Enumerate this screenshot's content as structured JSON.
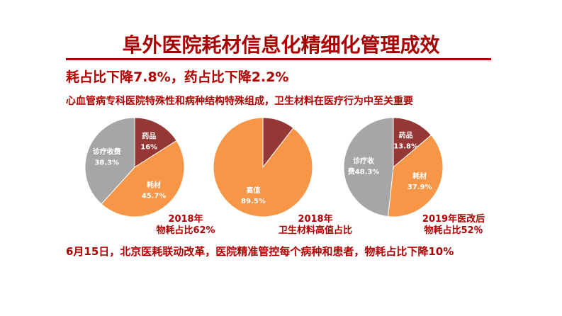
{
  "title": "阜外医院耗材信息化精细化管理成效",
  "subtitle": "耗占比下降7.8%，药占比下降2.2%",
  "description": "心血管病专科医院特殊性和病种结构特殊组成，卫生材料在医疗行为中至关重要",
  "bottom_note": "6月15日，北京医耗联动改革，医院精准管控每个病种和患者，物耗占比下降10%",
  "colors": {
    "text": "#B00000",
    "drug": "#953735",
    "consumable": "#F79646",
    "service": "#A6A6A6"
  },
  "chart_data": [
    {
      "type": "pie",
      "caption": [
        "2018年",
        "物耗占比62%"
      ],
      "start": "12 o'clock clockwise",
      "slices": [
        {
          "label": [
            "药品",
            "16%"
          ],
          "value": 16,
          "color": "#953735"
        },
        {
          "label": [
            "耗材",
            "45.7%"
          ],
          "value": 45.7,
          "color": "#F79646"
        },
        {
          "label": [
            "诊疗收费",
            "38.3%"
          ],
          "value": 38.3,
          "color": "#A6A6A6"
        }
      ]
    },
    {
      "type": "pie",
      "caption": [
        "2018年",
        "卫生材料高值占比"
      ],
      "start": "12 o'clock clockwise",
      "slices": [
        {
          "label": [],
          "value": 10.5,
          "color": "#953735"
        },
        {
          "label": [
            "高值",
            "89.5%"
          ],
          "value": 89.5,
          "color": "#F79646"
        }
      ]
    },
    {
      "type": "pie",
      "caption": [
        "2019年医改后",
        "物耗占比52％"
      ],
      "start": "12 o'clock clockwise",
      "slices": [
        {
          "label": [
            "药品",
            "13.8%"
          ],
          "value": 13.8,
          "color": "#953735"
        },
        {
          "label": [
            "耗材",
            "37.9%"
          ],
          "value": 37.9,
          "color": "#F79646"
        },
        {
          "label": [
            "诊疗收",
            "费48.3%"
          ],
          "value": 48.3,
          "color": "#A6A6A6"
        }
      ]
    }
  ]
}
